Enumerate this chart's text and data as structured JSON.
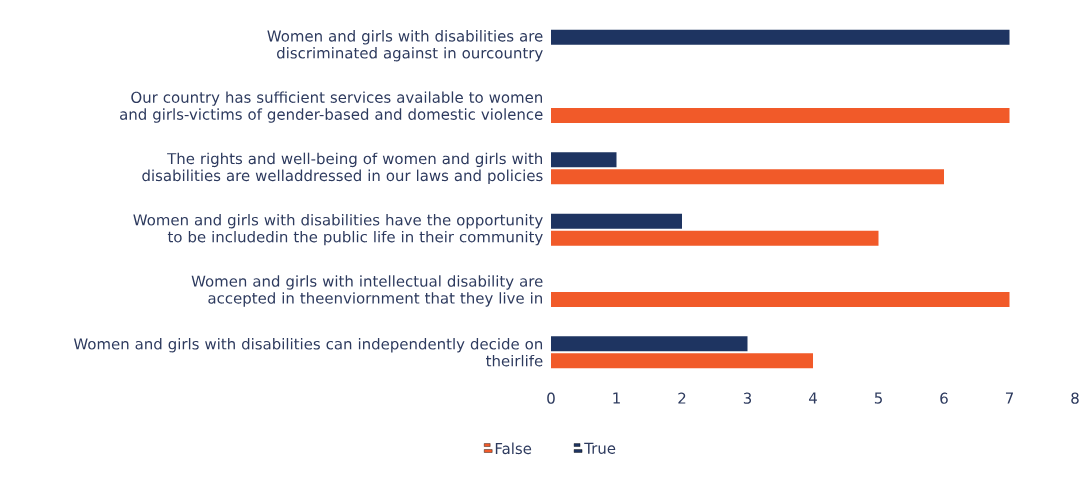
{
  "chart_data": {
    "type": "bar",
    "orientation": "horizontal",
    "categories": [
      "Women and girls with disabilities are discriminated against in ourcountry",
      "Our country has sufficient services available to women and girls-victims of gender-based and domestic violence",
      "The rights and well-being of women and girls with disabilities are welladdressed in our laws and policies",
      "Women and girls with disabilities have the opportunity to be includedin the public life in their community",
      "Women and girls with intellectual disability are accepted in theenviornment that they live in",
      "Women and girls with disabilities can independently decide on theirlife"
    ],
    "series": [
      {
        "name": "False",
        "color": "#f15a29",
        "values": [
          0,
          7,
          6,
          5,
          7,
          4
        ]
      },
      {
        "name": "True",
        "color": "#1e3461",
        "values": [
          7,
          0,
          1,
          2,
          0,
          3
        ]
      }
    ],
    "xlim": [
      0,
      8
    ],
    "xticks": [
      0,
      1,
      2,
      3,
      4,
      5,
      6,
      7,
      8
    ],
    "legend": "bottom",
    "grid": false
  }
}
